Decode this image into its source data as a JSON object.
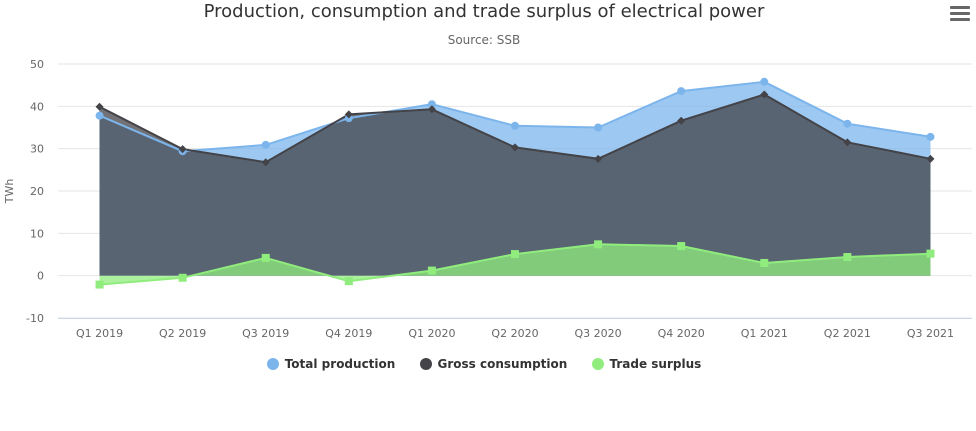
{
  "header": {
    "title": "Production, consumption and trade surplus of electrical power",
    "subtitle": "Source: SSB",
    "menu_icon": "hamburger-menu-icon"
  },
  "colors": {
    "production": "#7cb5ec",
    "consumption": "#434348",
    "surplus": "#90ed7d"
  },
  "chart_data": {
    "type": "area",
    "title": "Production, consumption and trade surplus of electrical power",
    "subtitle": "Source: SSB",
    "xlabel": "",
    "ylabel": "TWh",
    "ylim": [
      -10,
      50
    ],
    "yticks": [
      -10,
      0,
      10,
      20,
      30,
      40,
      50
    ],
    "grid": true,
    "legend_position": "bottom-center",
    "categories": [
      "Q1 2019",
      "Q2 2019",
      "Q3 2019",
      "Q4 2019",
      "Q1 2020",
      "Q2 2020",
      "Q3 2020",
      "Q4 2020",
      "Q1 2021",
      "Q2 2021",
      "Q3 2021"
    ],
    "series": [
      {
        "name": "Total production",
        "color": "#7cb5ec",
        "marker": "circle",
        "values": [
          37.8,
          29.4,
          30.9,
          37.2,
          40.5,
          35.4,
          35.0,
          43.6,
          45.8,
          35.9,
          32.8
        ]
      },
      {
        "name": "Gross consumption",
        "color": "#434348",
        "marker": "diamond",
        "values": [
          39.9,
          29.9,
          26.8,
          38.1,
          39.3,
          30.3,
          27.6,
          36.6,
          42.8,
          31.5,
          27.6
        ]
      },
      {
        "name": "Trade surplus",
        "color": "#90ed7d",
        "marker": "square",
        "values": [
          -2.1,
          -0.5,
          4.2,
          -1.3,
          1.2,
          5.1,
          7.4,
          7.0,
          3.0,
          4.4,
          5.2
        ]
      }
    ]
  }
}
